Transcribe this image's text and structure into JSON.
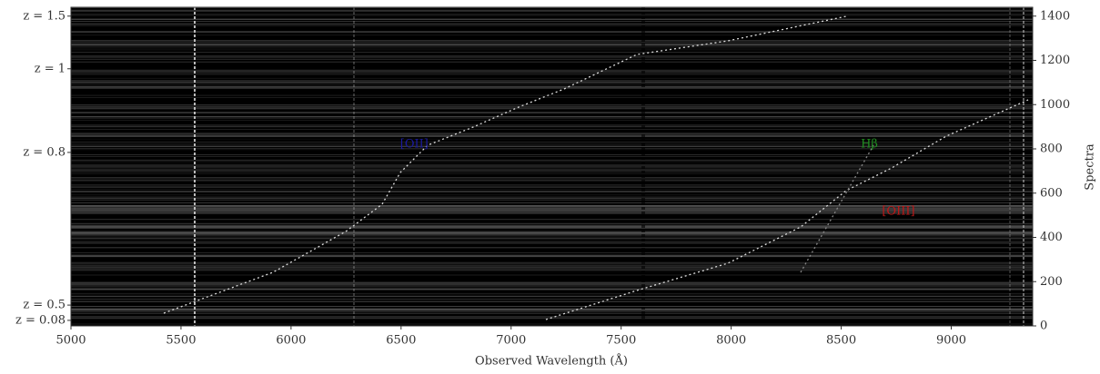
{
  "chart_data": {
    "type": "image",
    "x_label": "Observed Wavelength (Å)",
    "y2_label": "Spectra",
    "xlim": [
      5000,
      9370
    ],
    "xticks": [
      5000,
      5500,
      6000,
      6500,
      7000,
      7500,
      8000,
      8500,
      9000
    ],
    "y2lim": [
      0,
      1440
    ],
    "y2ticks": [
      0,
      200,
      400,
      600,
      800,
      1000,
      1200,
      1400
    ],
    "yticks": [
      {
        "value": 1400,
        "label": "z = 1.5"
      },
      {
        "value": 1162,
        "label": "z = 1"
      },
      {
        "value": 784,
        "label": "z = 0.8"
      },
      {
        "value": 94,
        "label": "z = 0.5"
      },
      {
        "value": 25,
        "label": "z = 0.08"
      }
    ],
    "annotations": [
      {
        "text": "[OII]",
        "x": 6560,
        "y": 821,
        "color": "#1a1aa0"
      },
      {
        "text": "Hβ",
        "x": 8628,
        "y": 821,
        "color": "#1f8f1f"
      },
      {
        "text": "[OIII]",
        "x": 8760,
        "y": 517,
        "color": "#c01818"
      }
    ]
  }
}
